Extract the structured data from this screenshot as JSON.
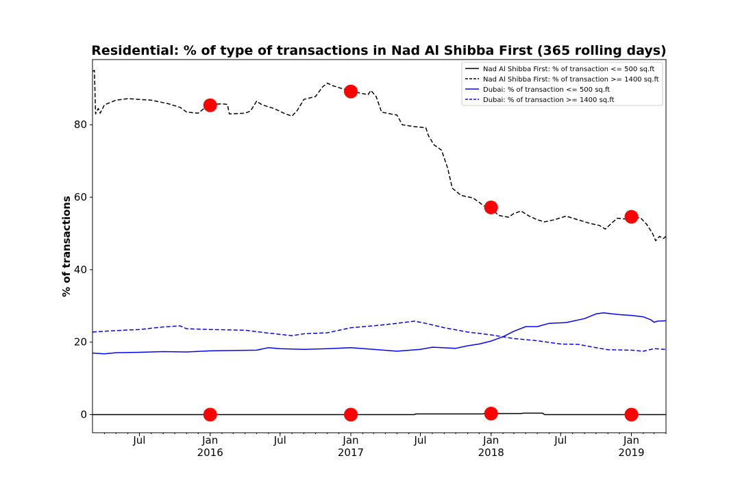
{
  "chart_data": {
    "type": "line",
    "title": "Residential: % of type of transactions in Nad Al Shibba First (365 rolling days)",
    "xlabel": "",
    "ylabel": "% of transactions",
    "xlim": [
      "2015-03-01",
      "2019-04-01"
    ],
    "ylim": [
      -5,
      98
    ],
    "yticks": [
      0,
      20,
      40,
      60,
      80
    ],
    "xticks": [
      {
        "date": "2015-07-01",
        "label": "Jul",
        "year": ""
      },
      {
        "date": "2016-01-01",
        "label": "Jan",
        "year": "2016"
      },
      {
        "date": "2016-07-01",
        "label": "Jul",
        "year": ""
      },
      {
        "date": "2017-01-01",
        "label": "Jan",
        "year": "2017"
      },
      {
        "date": "2017-07-01",
        "label": "Jul",
        "year": ""
      },
      {
        "date": "2018-01-01",
        "label": "Jan",
        "year": "2018"
      },
      {
        "date": "2018-07-01",
        "label": "Jul",
        "year": ""
      },
      {
        "date": "2019-01-01",
        "label": "Jan",
        "year": "2019"
      }
    ],
    "legend_position": "top-right",
    "series": [
      {
        "name": "Nad Al Shibba First: % of transaction <= 500 sq.ft",
        "color": "#000000",
        "style": "solid",
        "points": [
          [
            "2015-03-01",
            0
          ],
          [
            "2017-06-15",
            0
          ],
          [
            "2017-06-20",
            0.2
          ],
          [
            "2017-12-10",
            0.2
          ],
          [
            "2017-12-15",
            0.3
          ],
          [
            "2018-03-20",
            0.3
          ],
          [
            "2018-03-25",
            0.4
          ],
          [
            "2018-05-15",
            0.4
          ],
          [
            "2018-05-20",
            0
          ],
          [
            "2019-04-01",
            0
          ]
        ]
      },
      {
        "name": "Nad Al Shibba First: % of transaction >= 1400 sq.ft",
        "color": "#000000",
        "style": "dashed",
        "points": [
          [
            "2015-03-01",
            94.8
          ],
          [
            "2015-03-06",
            95
          ],
          [
            "2015-03-09",
            83
          ],
          [
            "2015-03-16",
            84.5
          ],
          [
            "2015-03-21",
            83.2
          ],
          [
            "2015-04-01",
            85.5
          ],
          [
            "2015-05-01",
            86.8
          ],
          [
            "2015-06-01",
            87.2
          ],
          [
            "2015-07-01",
            87.0
          ],
          [
            "2015-08-01",
            86.8
          ],
          [
            "2015-09-15",
            85.8
          ],
          [
            "2015-10-15",
            84.8
          ],
          [
            "2015-11-01",
            83.5
          ],
          [
            "2015-12-01",
            83.2
          ],
          [
            "2015-12-20",
            84.8
          ],
          [
            "2016-01-01",
            85.6
          ],
          [
            "2016-02-01",
            85.8
          ],
          [
            "2016-02-15",
            85.6
          ],
          [
            "2016-02-20",
            83.0
          ],
          [
            "2016-04-01",
            83.2
          ],
          [
            "2016-04-15",
            83.8
          ],
          [
            "2016-05-01",
            86.5
          ],
          [
            "2016-05-15",
            85.5
          ],
          [
            "2016-06-15",
            84.5
          ],
          [
            "2016-07-15",
            83.0
          ],
          [
            "2016-08-01",
            82.4
          ],
          [
            "2016-08-15",
            84.0
          ],
          [
            "2016-09-01",
            87.0
          ],
          [
            "2016-10-01",
            87.8
          ],
          [
            "2016-10-20",
            90.5
          ],
          [
            "2016-11-01",
            91.5
          ],
          [
            "2016-11-15",
            90.8
          ],
          [
            "2016-12-15",
            89.8
          ],
          [
            "2017-01-01",
            89.3
          ],
          [
            "2017-02-01",
            88.6
          ],
          [
            "2017-02-15",
            88.3
          ],
          [
            "2017-02-22",
            89.5
          ],
          [
            "2017-03-08",
            87.8
          ],
          [
            "2017-03-22",
            83.5
          ],
          [
            "2017-04-15",
            83.0
          ],
          [
            "2017-05-01",
            82.7
          ],
          [
            "2017-05-15",
            80.0
          ],
          [
            "2017-06-15",
            79.5
          ],
          [
            "2017-07-15",
            79.2
          ],
          [
            "2017-07-22",
            77.0
          ],
          [
            "2017-08-05",
            74.5
          ],
          [
            "2017-08-25",
            73.0
          ],
          [
            "2017-09-10",
            68.0
          ],
          [
            "2017-09-22",
            62.5
          ],
          [
            "2017-10-15",
            60.5
          ],
          [
            "2017-11-15",
            59.8
          ],
          [
            "2017-12-15",
            57.5
          ],
          [
            "2018-01-01",
            57.0
          ],
          [
            "2018-01-20",
            55.0
          ],
          [
            "2018-02-15",
            54.5
          ],
          [
            "2018-03-01",
            55.5
          ],
          [
            "2018-03-20",
            56.2
          ],
          [
            "2018-04-10",
            54.8
          ],
          [
            "2018-05-01",
            53.8
          ],
          [
            "2018-05-20",
            53.2
          ],
          [
            "2018-06-15",
            53.8
          ],
          [
            "2018-07-15",
            54.8
          ],
          [
            "2018-08-15",
            53.8
          ],
          [
            "2018-09-15",
            52.8
          ],
          [
            "2018-10-10",
            52.2
          ],
          [
            "2018-10-25",
            51.2
          ],
          [
            "2018-11-10",
            52.8
          ],
          [
            "2018-11-25",
            54.2
          ],
          [
            "2018-12-15",
            54.0
          ],
          [
            "2019-01-01",
            54.5
          ],
          [
            "2019-01-25",
            54.3
          ],
          [
            "2019-02-10",
            52.5
          ],
          [
            "2019-02-25",
            50.0
          ],
          [
            "2019-03-05",
            48.0
          ],
          [
            "2019-03-15",
            49.2
          ],
          [
            "2019-03-25",
            48.6
          ],
          [
            "2019-04-01",
            49.2
          ]
        ]
      },
      {
        "name": "Dubai: % of transaction <= 500 sq.ft",
        "color": "#0000ff",
        "style": "solid",
        "points": [
          [
            "2015-03-01",
            17.0
          ],
          [
            "2015-04-01",
            16.8
          ],
          [
            "2015-05-01",
            17.1
          ],
          [
            "2015-07-01",
            17.2
          ],
          [
            "2015-09-01",
            17.4
          ],
          [
            "2015-11-01",
            17.3
          ],
          [
            "2016-01-01",
            17.6
          ],
          [
            "2016-03-01",
            17.7
          ],
          [
            "2016-05-01",
            17.8
          ],
          [
            "2016-06-01",
            18.5
          ],
          [
            "2016-07-01",
            18.2
          ],
          [
            "2016-09-01",
            18.0
          ],
          [
            "2016-11-01",
            18.2
          ],
          [
            "2017-01-01",
            18.5
          ],
          [
            "2017-03-01",
            18.0
          ],
          [
            "2017-05-01",
            17.5
          ],
          [
            "2017-07-01",
            18.0
          ],
          [
            "2017-08-01",
            18.6
          ],
          [
            "2017-10-01",
            18.3
          ],
          [
            "2017-11-01",
            19.0
          ],
          [
            "2017-12-01",
            19.5
          ],
          [
            "2018-01-01",
            20.3
          ],
          [
            "2018-02-01",
            21.5
          ],
          [
            "2018-03-01",
            23.0
          ],
          [
            "2018-04-01",
            24.3
          ],
          [
            "2018-05-01",
            24.3
          ],
          [
            "2018-06-01",
            25.2
          ],
          [
            "2018-07-15",
            25.4
          ],
          [
            "2018-09-01",
            26.5
          ],
          [
            "2018-10-01",
            27.8
          ],
          [
            "2018-10-20",
            28.1
          ],
          [
            "2018-12-01",
            27.6
          ],
          [
            "2019-01-01",
            27.4
          ],
          [
            "2019-02-01",
            27.0
          ],
          [
            "2019-02-20",
            26.2
          ],
          [
            "2019-03-01",
            25.5
          ],
          [
            "2019-03-10",
            25.8
          ],
          [
            "2019-04-01",
            25.9
          ]
        ]
      },
      {
        "name": "Dubai: % of transaction >= 1400 sq.ft",
        "color": "#0000ff",
        "style": "dashed",
        "points": [
          [
            "2015-03-01",
            22.8
          ],
          [
            "2015-05-01",
            23.2
          ],
          [
            "2015-07-01",
            23.5
          ],
          [
            "2015-09-01",
            24.2
          ],
          [
            "2015-10-15",
            24.5
          ],
          [
            "2015-11-01",
            23.7
          ],
          [
            "2016-01-01",
            23.5
          ],
          [
            "2016-04-01",
            23.3
          ],
          [
            "2016-06-01",
            22.5
          ],
          [
            "2016-08-01",
            21.8
          ],
          [
            "2016-09-01",
            22.3
          ],
          [
            "2016-11-01",
            22.6
          ],
          [
            "2017-01-01",
            24.0
          ],
          [
            "2017-03-01",
            24.5
          ],
          [
            "2017-05-01",
            25.2
          ],
          [
            "2017-06-15",
            25.8
          ],
          [
            "2017-07-15",
            25.2
          ],
          [
            "2017-09-01",
            24.0
          ],
          [
            "2017-11-01",
            22.8
          ],
          [
            "2018-01-01",
            22.0
          ],
          [
            "2018-03-01",
            21.0
          ],
          [
            "2018-05-01",
            20.4
          ],
          [
            "2018-07-01",
            19.5
          ],
          [
            "2018-08-15",
            19.4
          ],
          [
            "2018-10-01",
            18.5
          ],
          [
            "2018-11-01",
            17.9
          ],
          [
            "2019-01-01",
            17.8
          ],
          [
            "2019-02-01",
            17.5
          ],
          [
            "2019-03-01",
            18.2
          ],
          [
            "2019-04-01",
            18.0
          ]
        ]
      }
    ],
    "markers": {
      "color": "#ff0000",
      "points": [
        [
          "2016-01-01",
          85.4
        ],
        [
          "2017-01-01",
          89.2
        ],
        [
          "2018-01-01",
          57.2
        ],
        [
          "2019-01-01",
          54.6
        ],
        [
          "2016-01-01",
          0
        ],
        [
          "2017-01-01",
          0
        ],
        [
          "2018-01-01",
          0.3
        ],
        [
          "2019-01-01",
          0
        ]
      ]
    }
  }
}
